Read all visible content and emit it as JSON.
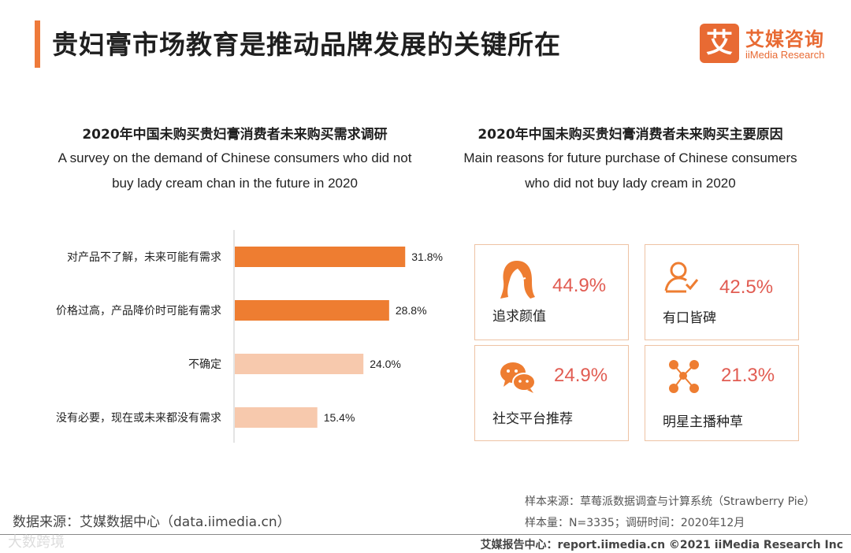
{
  "header": {
    "title": "贵妇膏市场教育是推动品牌发展的关键所在",
    "logo_mark": "艾",
    "logo_cn": "艾媒咨询",
    "logo_en": "iiMedia Research"
  },
  "left_section": {
    "title": "2020年中国未购买贵妇膏消费者未来购买需求调研",
    "subtitle_line1": "A survey on the demand of Chinese consumers who did not",
    "subtitle_line2": "buy lady cream chan in the future in 2020"
  },
  "right_section": {
    "title": "2020年中国未购买贵妇膏消费者未来购买主要原因",
    "subtitle_line1": "Main reasons for future purchase of Chinese consumers",
    "subtitle_line2": "who did not buy lady cream in 2020",
    "cards": [
      {
        "label": "追求颜值",
        "value": "44.9%",
        "icon": "hair-icon"
      },
      {
        "label": "有口皆碑",
        "value": "42.5%",
        "icon": "user-check-icon"
      },
      {
        "label": "社交平台推荐",
        "value": "24.9%",
        "icon": "chat-bubbles-icon"
      },
      {
        "label": "明星主播种草",
        "value": "21.3%",
        "icon": "social-network-icon"
      }
    ]
  },
  "chart_data": {
    "type": "bar",
    "orientation": "horizontal",
    "categories": [
      "对产品不了解，未来可能有需求",
      "价格过高，产品降价时可能有需求",
      "不确定",
      "没有必要，现在或未来都没有需求"
    ],
    "values": [
      31.8,
      28.8,
      24.0,
      15.4
    ],
    "value_labels": [
      "31.8%",
      "28.8%",
      "24.0%",
      "15.4%"
    ],
    "xlim": [
      0,
      35
    ],
    "colors": [
      "#ee7d31",
      "#ee7d31",
      "#f7c9ad",
      "#f7c9ad"
    ],
    "title": "2020年中国未购买贵妇膏消费者未来购买需求调研"
  },
  "footer": {
    "source_left": "数据来源：艾媒数据中心（data.iimedia.cn）",
    "sample_source": "样本来源：草莓派数据调查与计算系统（Strawberry Pie）",
    "sample_size": "样本量：N=3335；调研时间：2020年12月",
    "report_center": "艾媒报告中心：report.iimedia.cn  ©2021  iiMedia Research  Inc",
    "watermark": "大数跨境"
  },
  "colors": {
    "accent": "#ee7a3a",
    "bar_dark": "#ee7d31",
    "bar_light": "#f7c9ad",
    "percent": "#e15c52",
    "card_border": "#eec3a4"
  }
}
